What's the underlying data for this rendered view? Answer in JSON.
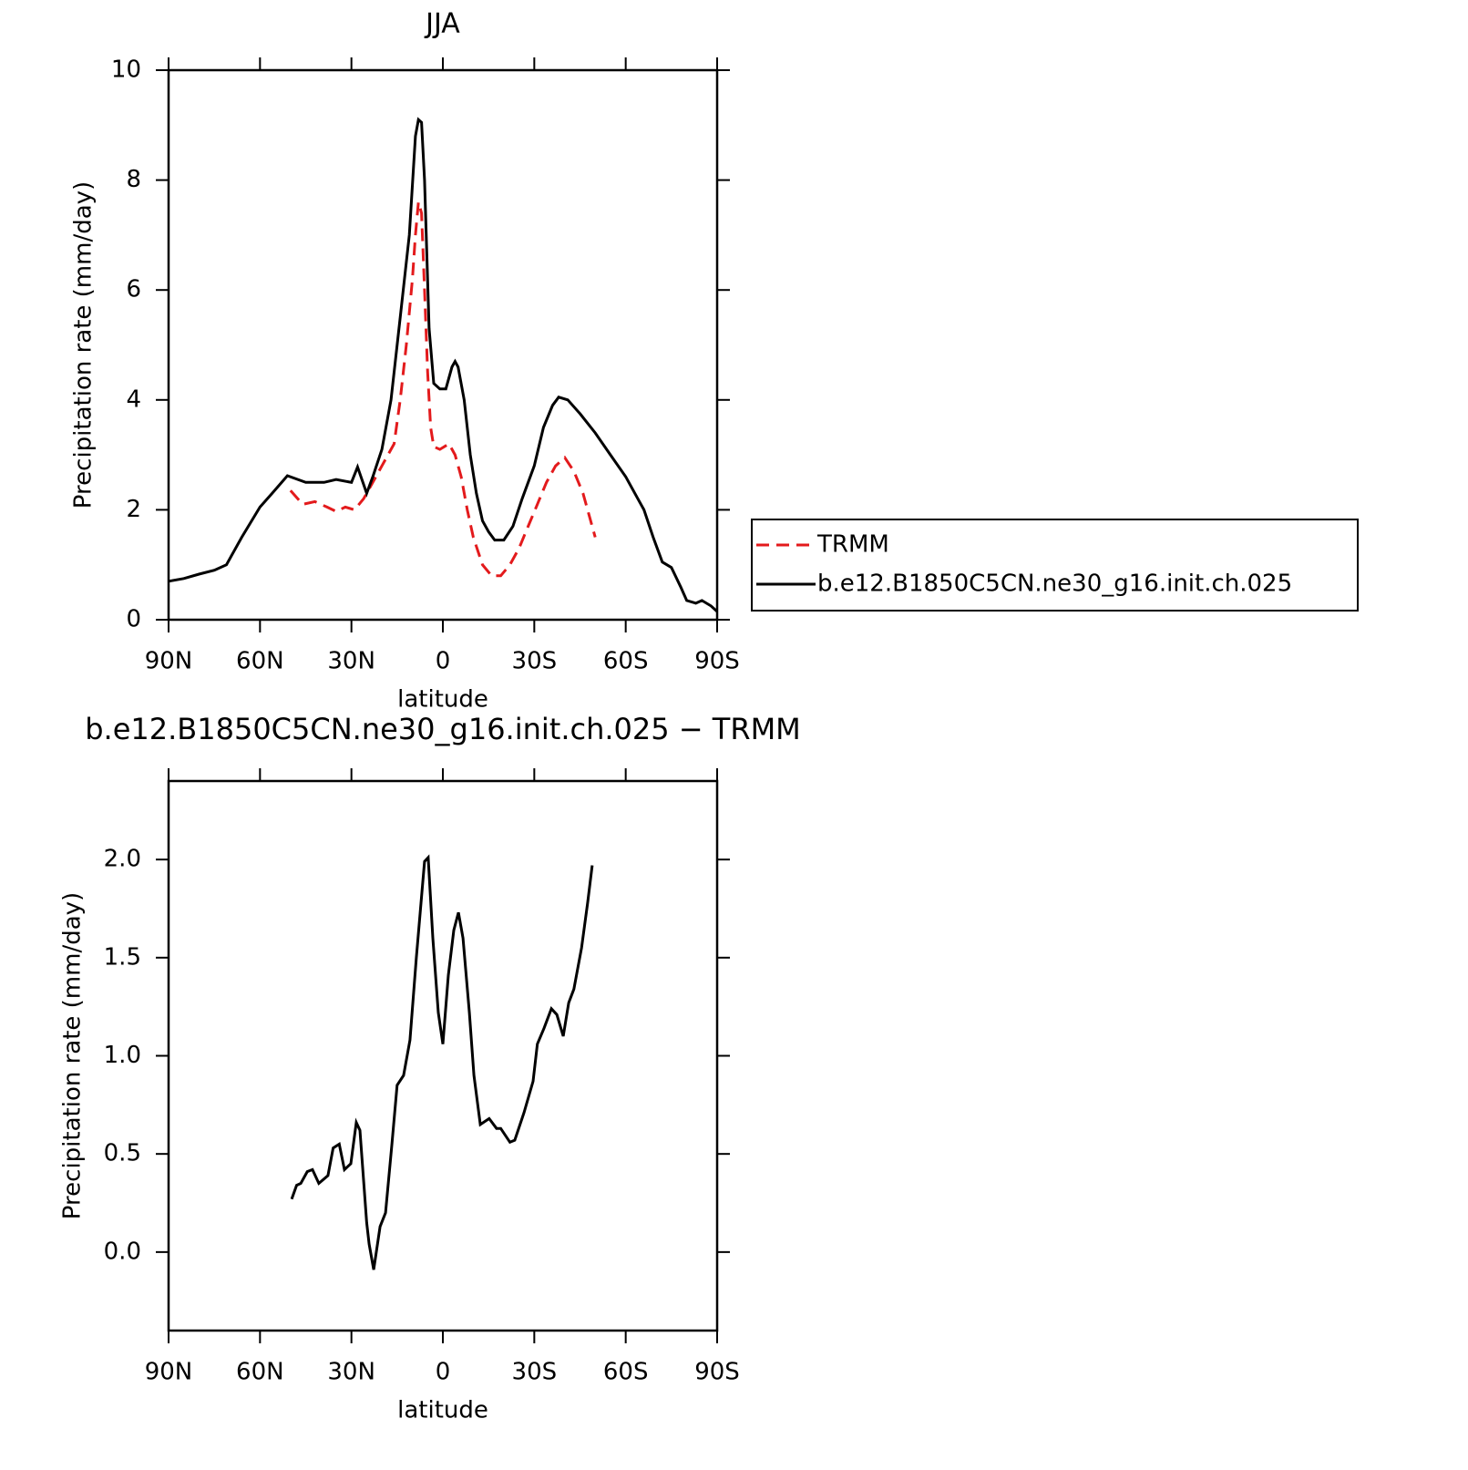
{
  "chart_data": [
    {
      "type": "line",
      "title": "JJA",
      "xlabel": "latitude",
      "ylabel": "Precipitation rate (mm/day)",
      "xlim": [
        90,
        -90
      ],
      "xticks": [
        {
          "value": 90,
          "label": "90N"
        },
        {
          "value": 60,
          "label": "60N"
        },
        {
          "value": 30,
          "label": "30N"
        },
        0,
        {
          "value": -30,
          "label": "30S"
        },
        {
          "value": -60,
          "label": "60S"
        },
        {
          "value": -90,
          "label": "90S"
        }
      ],
      "ylim": [
        0,
        10
      ],
      "yticks": [
        0,
        2,
        4,
        6,
        8,
        10
      ],
      "legend": "right",
      "series": [
        {
          "name": "TRMM",
          "color": "#e31a1c",
          "dash": true,
          "x": [
            50,
            46,
            42,
            38,
            35,
            32,
            29,
            26,
            23,
            20,
            16,
            14,
            12,
            10,
            9,
            8,
            7,
            6,
            5,
            4,
            3,
            1,
            -2,
            -4,
            -6,
            -8,
            -10,
            -13,
            -16,
            -19,
            -22,
            -25,
            -28,
            -31,
            -34,
            -37,
            -40,
            -43,
            -46,
            -48,
            -50
          ],
          "values": [
            2.35,
            2.1,
            2.15,
            2.05,
            1.97,
            2.05,
            2.0,
            2.2,
            2.5,
            2.8,
            3.2,
            4.0,
            5.0,
            6.2,
            7.0,
            7.6,
            7.4,
            6.0,
            4.5,
            3.5,
            3.15,
            3.1,
            3.2,
            3.0,
            2.6,
            2.0,
            1.5,
            1.0,
            0.8,
            0.8,
            1.0,
            1.3,
            1.7,
            2.1,
            2.5,
            2.8,
            2.95,
            2.7,
            2.3,
            1.9,
            1.5
          ]
        },
        {
          "name": "b.e12.B1850C5CN.ne30_g16.init.ch.025",
          "color": "#000000",
          "dash": false,
          "x": [
            90,
            85,
            80,
            75,
            71,
            66,
            60,
            56,
            51,
            45,
            39,
            35,
            30,
            28,
            25,
            23,
            20,
            17,
            14,
            11,
            9,
            8,
            7,
            6,
            4.5,
            3,
            1,
            0,
            -1,
            -3,
            -4,
            -5,
            -7,
            -9,
            -11,
            -13,
            -15,
            -17,
            -20,
            -23,
            -26,
            -30,
            -33,
            -36,
            -38,
            -41,
            -45,
            -50,
            -55,
            -60,
            -64,
            -66,
            -69,
            -72,
            -75,
            -78,
            -80,
            -83,
            -85,
            -88,
            -90
          ],
          "values": [
            0.7,
            0.75,
            0.83,
            0.9,
            1.0,
            1.5,
            2.05,
            2.3,
            2.62,
            2.5,
            2.5,
            2.55,
            2.5,
            2.78,
            2.3,
            2.6,
            3.1,
            4.0,
            5.5,
            7.0,
            8.8,
            9.1,
            9.05,
            8.0,
            5.3,
            4.3,
            4.2,
            4.2,
            4.2,
            4.6,
            4.7,
            4.6,
            4.0,
            3.0,
            2.3,
            1.8,
            1.6,
            1.45,
            1.45,
            1.7,
            2.2,
            2.8,
            3.5,
            3.9,
            4.05,
            4.0,
            3.75,
            3.4,
            3.0,
            2.6,
            2.2,
            2.0,
            1.5,
            1.05,
            0.95,
            0.6,
            0.35,
            0.3,
            0.35,
            0.25,
            0.15
          ]
        }
      ]
    },
    {
      "type": "line",
      "title": "b.e12.B1850C5CN.ne30_g16.init.ch.025 − TRMM",
      "xlabel": "latitude",
      "ylabel": "Precipitation rate (mm/day)",
      "xlim": [
        90,
        -90
      ],
      "xticks": [
        {
          "value": 90,
          "label": "90N"
        },
        {
          "value": 60,
          "label": "60N"
        },
        {
          "value": 30,
          "label": "30N"
        },
        0,
        {
          "value": -30,
          "label": "30S"
        },
        {
          "value": -60,
          "label": "60S"
        },
        {
          "value": -90,
          "label": "90S"
        }
      ],
      "ylim": [
        -0.4,
        2.4
      ],
      "yticks": [
        {
          "value": 0,
          "label": "0.0"
        },
        {
          "value": 0.5,
          "label": "0.5"
        },
        {
          "value": 1,
          "label": "1.0"
        },
        {
          "value": 1.5,
          "label": "1.5"
        },
        {
          "value": 2,
          "label": "2.0"
        }
      ],
      "series": [
        {
          "color": "#000000",
          "dash": false,
          "x": [
            49.6,
            48,
            46.6,
            44.5,
            42.8,
            40.7,
            37.7,
            36,
            34,
            32.3,
            30.2,
            28.4,
            27.2,
            25,
            24.2,
            22.7,
            20.6,
            18.8,
            16.7,
            15,
            12.9,
            10.8,
            8.7,
            6,
            4.8,
            3.3,
            1.5,
            0,
            -1.8,
            -3.6,
            -5.1,
            -6.6,
            -8.7,
            -10.2,
            -12.3,
            -15.2,
            -17.6,
            -19,
            -22,
            -23.6,
            -26.6,
            -29.6,
            -31,
            -33.2,
            -35.6,
            -37.4,
            -39.5,
            -41.3,
            -43,
            -45.5,
            -47.5,
            -49
          ],
          "values": [
            0.27,
            0.34,
            0.35,
            0.41,
            0.42,
            0.35,
            0.39,
            0.53,
            0.55,
            0.42,
            0.45,
            0.66,
            0.62,
            0.15,
            0.04,
            -0.09,
            0.13,
            0.2,
            0.55,
            0.85,
            0.9,
            1.08,
            1.5,
            1.99,
            2.01,
            1.6,
            1.22,
            1.06,
            1.41,
            1.64,
            1.73,
            1.6,
            1.22,
            0.9,
            0.65,
            0.68,
            0.63,
            0.63,
            0.56,
            0.57,
            0.71,
            0.87,
            1.06,
            1.14,
            1.24,
            1.21,
            1.1,
            1.27,
            1.34,
            1.55,
            1.78,
            1.97
          ]
        }
      ]
    }
  ]
}
